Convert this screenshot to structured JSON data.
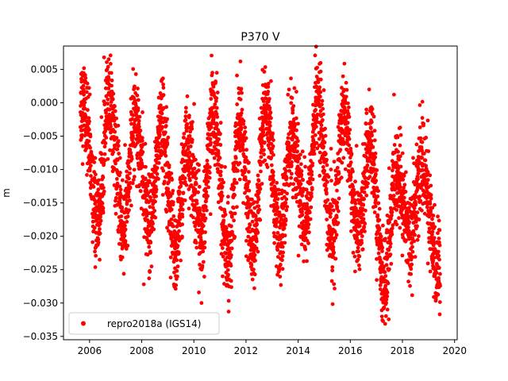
{
  "chart_data": {
    "type": "scatter",
    "title": "P370 V",
    "xlabel": "",
    "ylabel": "m",
    "xlim": [
      2005.0,
      2020.1
    ],
    "ylim": [
      -0.0355,
      0.0085
    ],
    "x_ticks": [
      2006,
      2008,
      2010,
      2012,
      2014,
      2016,
      2018,
      2020
    ],
    "x_tick_labels": [
      "2006",
      "2008",
      "2010",
      "2012",
      "2014",
      "2016",
      "2018",
      "2020"
    ],
    "y_ticks": [
      0.005,
      0.0,
      -0.005,
      -0.01,
      -0.015,
      -0.02,
      -0.025,
      -0.03,
      -0.035
    ],
    "y_tick_labels": [
      "0.005",
      "0.000",
      "−0.005",
      "−0.010",
      "−0.015",
      "−0.020",
      "−0.025",
      "−0.030",
      "−0.035"
    ],
    "legend_position": "lower-left",
    "grid": false,
    "series": [
      {
        "name": "repro2018a (IGS14)",
        "color": "#ff0000",
        "marker": "circle",
        "x_range": [
          2005.65,
          2019.45
        ],
        "seasonal_peaks": [
          {
            "x": 2005.75,
            "y": 0.006
          },
          {
            "x": 2006.75,
            "y": 0.0065
          },
          {
            "x": 2007.75,
            "y": 0.004
          },
          {
            "x": 2008.75,
            "y": 0.003
          },
          {
            "x": 2009.75,
            "y": -0.001
          },
          {
            "x": 2010.75,
            "y": 0.005
          },
          {
            "x": 2011.75,
            "y": 0.002
          },
          {
            "x": 2012.75,
            "y": 0.004
          },
          {
            "x": 2013.75,
            "y": 0.001
          },
          {
            "x": 2014.75,
            "y": 0.0066
          },
          {
            "x": 2015.75,
            "y": 0.004
          },
          {
            "x": 2016.75,
            "y": 0.0
          },
          {
            "x": 2017.75,
            "y": -0.005
          },
          {
            "x": 2018.75,
            "y": -0.003
          }
        ],
        "seasonal_troughs": [
          {
            "x": 2006.3,
            "y": -0.0245
          },
          {
            "x": 2007.3,
            "y": -0.0255
          },
          {
            "x": 2008.3,
            "y": -0.026
          },
          {
            "x": 2009.3,
            "y": -0.0285
          },
          {
            "x": 2010.3,
            "y": -0.026
          },
          {
            "x": 2011.3,
            "y": -0.0302
          },
          {
            "x": 2012.3,
            "y": -0.0285
          },
          {
            "x": 2013.3,
            "y": -0.0275
          },
          {
            "x": 2014.3,
            "y": -0.025
          },
          {
            "x": 2015.3,
            "y": -0.0275
          },
          {
            "x": 2016.3,
            "y": -0.0265
          },
          {
            "x": 2017.3,
            "y": -0.034
          },
          {
            "x": 2018.3,
            "y": -0.0265
          },
          {
            "x": 2019.3,
            "y": -0.0307
          }
        ],
        "mean_level": -0.011,
        "seasonal_amplitude": 0.0065,
        "noise_sd": 0.0035,
        "points_per_year": 300
      }
    ]
  }
}
